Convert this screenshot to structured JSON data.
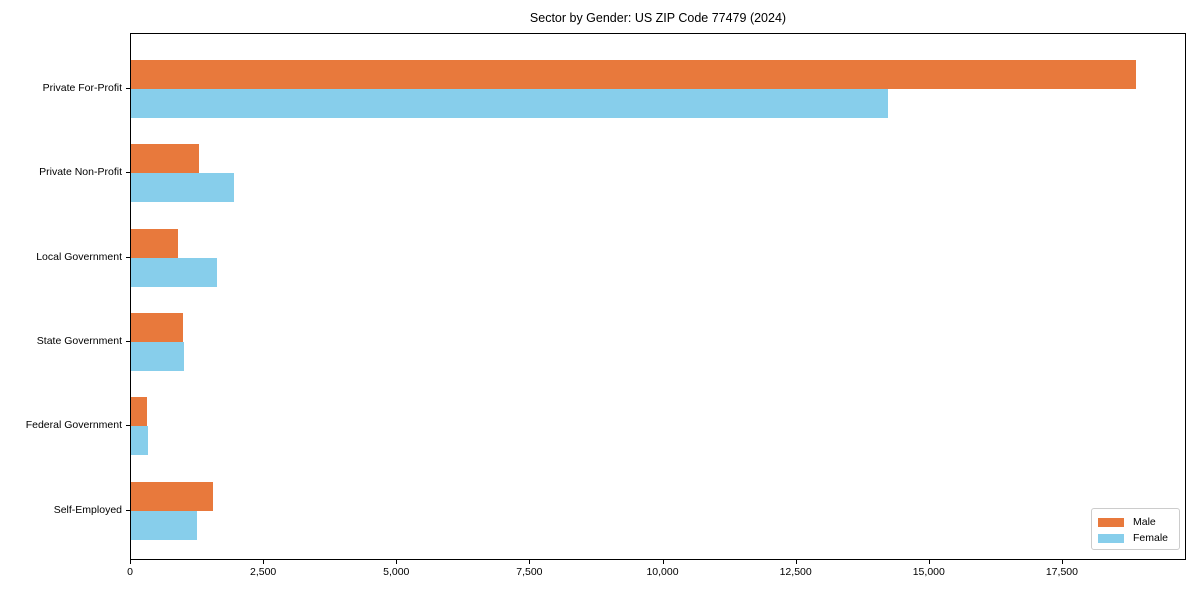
{
  "chart_data": {
    "type": "bar",
    "orientation": "horizontal",
    "title": "Sector by Gender: US ZIP Code 77479 (2024)",
    "categories": [
      "Private For-Profit",
      "Private Non-Profit",
      "Local Government",
      "State Government",
      "Federal Government",
      "Self-Employed"
    ],
    "series": [
      {
        "name": "Male",
        "color": "#e8793c",
        "values": [
          18880,
          1280,
          875,
          970,
          295,
          1545
        ]
      },
      {
        "name": "Female",
        "color": "#87ceeb",
        "values": [
          14210,
          1940,
          1615,
          1000,
          325,
          1235
        ]
      }
    ],
    "xlabel": "",
    "ylabel": "",
    "xlim": [
      0,
      19830
    ],
    "xticks": [
      0,
      2500,
      5000,
      7500,
      10000,
      12500,
      15000,
      17500
    ],
    "xtick_labels": [
      "0",
      "2,500",
      "5,000",
      "7,500",
      "10,000",
      "12,500",
      "15,000",
      "17,500"
    ],
    "grid": false,
    "legend": {
      "position": "lower right",
      "entries": [
        "Male",
        "Female"
      ]
    }
  },
  "colors": {
    "background": "#ffffff",
    "spine": "#000000",
    "text": "#000000",
    "legend_border": "#cccccc"
  }
}
